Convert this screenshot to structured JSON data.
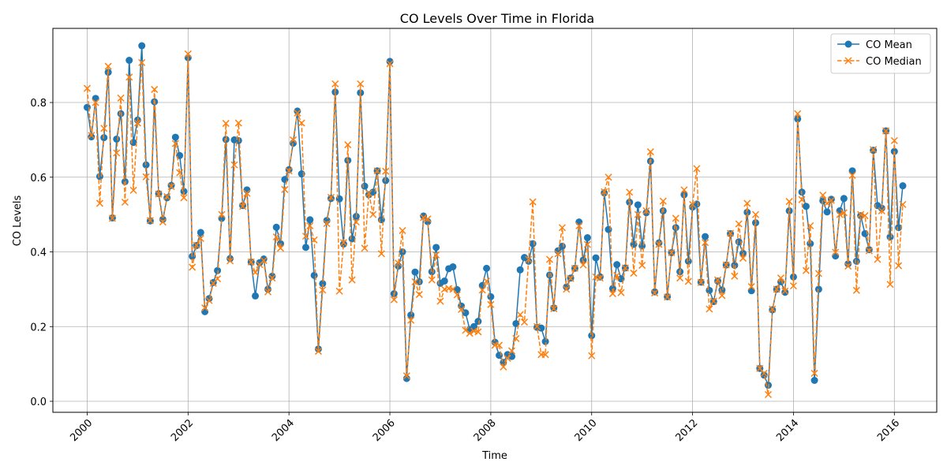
{
  "chart_data": {
    "type": "line",
    "title": "CO Levels Over Time in Florida",
    "xlabel": "Time",
    "ylabel": "CO Levels",
    "xlim": [
      1999.32,
      2016.84
    ],
    "ylim": [
      -0.0295,
      0.9985
    ],
    "x_ticks": [
      2000,
      2002,
      2004,
      2006,
      2008,
      2010,
      2012,
      2014,
      2016
    ],
    "x_tick_labels": [
      "2000",
      "2002",
      "2004",
      "2006",
      "2008",
      "2010",
      "2012",
      "2014",
      "2016"
    ],
    "y_ticks": [
      0.0,
      0.2,
      0.4,
      0.6,
      0.8
    ],
    "y_tick_labels": [
      "0.0",
      "0.2",
      "0.4",
      "0.6",
      "0.8"
    ],
    "grid": true,
    "legend_position": "top-right",
    "series": [
      {
        "name": "CO Mean",
        "color": "#1f77b4",
        "style": "solid",
        "marker": "circle",
        "x": [
          2000.0,
          2000.083,
          2000.167,
          2000.25,
          2000.333,
          2000.417,
          2000.5,
          2000.583,
          2000.667,
          2000.75,
          2000.833,
          2000.917,
          2001.0,
          2001.083,
          2001.167,
          2001.25,
          2001.333,
          2001.417,
          2001.5,
          2001.583,
          2001.667,
          2001.75,
          2001.833,
          2001.917,
          2002.0,
          2002.083,
          2002.167,
          2002.25,
          2002.333,
          2002.417,
          2002.5,
          2002.583,
          2002.667,
          2002.75,
          2002.833,
          2002.917,
          2003.0,
          2003.083,
          2003.167,
          2003.25,
          2003.333,
          2003.417,
          2003.5,
          2003.583,
          2003.667,
          2003.75,
          2003.833,
          2003.917,
          2004.0,
          2004.083,
          2004.167,
          2004.25,
          2004.333,
          2004.417,
          2004.5,
          2004.583,
          2004.667,
          2004.75,
          2004.833,
          2004.917,
          2005.0,
          2005.083,
          2005.167,
          2005.25,
          2005.333,
          2005.417,
          2005.5,
          2005.583,
          2005.667,
          2005.75,
          2005.833,
          2005.917,
          2006.0,
          2006.083,
          2006.167,
          2006.25,
          2006.333,
          2006.417,
          2006.5,
          2006.583,
          2006.667,
          2006.75,
          2006.833,
          2006.917,
          2007.0,
          2007.083,
          2007.167,
          2007.25,
          2007.333,
          2007.417,
          2007.5,
          2007.583,
          2007.667,
          2007.75,
          2007.833,
          2007.917,
          2008.0,
          2008.083,
          2008.167,
          2008.25,
          2008.333,
          2008.417,
          2008.5,
          2008.583,
          2008.667,
          2008.75,
          2008.833,
          2008.917,
          2009.0,
          2009.083,
          2009.167,
          2009.25,
          2009.333,
          2009.417,
          2009.5,
          2009.583,
          2009.667,
          2009.75,
          2009.833,
          2009.917,
          2010.0,
          2010.083,
          2010.167,
          2010.25,
          2010.333,
          2010.417,
          2010.5,
          2010.583,
          2010.667,
          2010.75,
          2010.833,
          2010.917,
          2011.0,
          2011.083,
          2011.167,
          2011.25,
          2011.333,
          2011.417,
          2011.5,
          2011.583,
          2011.667,
          2011.75,
          2011.833,
          2011.917,
          2012.0,
          2012.083,
          2012.167,
          2012.25,
          2012.333,
          2012.417,
          2012.5,
          2012.583,
          2012.667,
          2012.75,
          2012.833,
          2012.917,
          2013.0,
          2013.083,
          2013.167,
          2013.25,
          2013.333,
          2013.417,
          2013.5,
          2013.583,
          2013.667,
          2013.75,
          2013.833,
          2013.917,
          2014.0,
          2014.083,
          2014.167,
          2014.25,
          2014.333,
          2014.417,
          2014.5,
          2014.583,
          2014.667,
          2014.75,
          2014.833,
          2014.917,
          2015.0,
          2015.083,
          2015.167,
          2015.25,
          2015.333,
          2015.417,
          2015.5,
          2015.583,
          2015.667,
          2015.75,
          2015.833,
          2015.917,
          2016.0,
          2016.083,
          2016.167
        ],
        "values": [
          0.787,
          0.708,
          0.811,
          0.602,
          0.706,
          0.881,
          0.491,
          0.702,
          0.77,
          0.588,
          0.913,
          0.693,
          0.753,
          0.952,
          0.633,
          0.483,
          0.802,
          0.556,
          0.487,
          0.545,
          0.578,
          0.707,
          0.658,
          0.562,
          0.92,
          0.388,
          0.417,
          0.452,
          0.24,
          0.275,
          0.318,
          0.35,
          0.49,
          0.701,
          0.382,
          0.7,
          0.698,
          0.524,
          0.566,
          0.373,
          0.282,
          0.371,
          0.381,
          0.3,
          0.335,
          0.466,
          0.422,
          0.594,
          0.62,
          0.691,
          0.777,
          0.609,
          0.412,
          0.486,
          0.337,
          0.14,
          0.315,
          0.484,
          0.543,
          0.828,
          0.542,
          0.421,
          0.645,
          0.435,
          0.495,
          0.826,
          0.576,
          0.553,
          0.56,
          0.617,
          0.486,
          0.591,
          0.91,
          0.288,
          0.362,
          0.4,
          0.061,
          0.231,
          0.346,
          0.32,
          0.496,
          0.481,
          0.347,
          0.412,
          0.316,
          0.322,
          0.355,
          0.36,
          0.299,
          0.255,
          0.237,
          0.192,
          0.2,
          0.214,
          0.31,
          0.356,
          0.28,
          0.158,
          0.123,
          0.104,
          0.125,
          0.12,
          0.208,
          0.352,
          0.385,
          0.375,
          0.422,
          0.198,
          0.196,
          0.16,
          0.338,
          0.25,
          0.403,
          0.415,
          0.306,
          0.33,
          0.356,
          0.48,
          0.378,
          0.438,
          0.176,
          0.384,
          0.333,
          0.558,
          0.46,
          0.302,
          0.366,
          0.328,
          0.357,
          0.533,
          0.42,
          0.526,
          0.416,
          0.505,
          0.643,
          0.293,
          0.424,
          0.51,
          0.28,
          0.398,
          0.465,
          0.347,
          0.553,
          0.375,
          0.52,
          0.528,
          0.319,
          0.441,
          0.297,
          0.267,
          0.322,
          0.298,
          0.365,
          0.449,
          0.364,
          0.427,
          0.396,
          0.506,
          0.296,
          0.478,
          0.088,
          0.07,
          0.043,
          0.245,
          0.3,
          0.32,
          0.292,
          0.51,
          0.333,
          0.756,
          0.56,
          0.522,
          0.422,
          0.056,
          0.3,
          0.537,
          0.507,
          0.541,
          0.389,
          0.51,
          0.543,
          0.368,
          0.617,
          0.375,
          0.497,
          0.449,
          0.406,
          0.672,
          0.524,
          0.517,
          0.724,
          0.44,
          0.669,
          0.465,
          0.577
        ]
      },
      {
        "name": "CO Median",
        "color": "#ff7f0e",
        "style": "dashed",
        "marker": "x",
        "x": [
          2000.0,
          2000.083,
          2000.167,
          2000.25,
          2000.333,
          2000.417,
          2000.5,
          2000.583,
          2000.667,
          2000.75,
          2000.833,
          2000.917,
          2001.0,
          2001.083,
          2001.167,
          2001.25,
          2001.333,
          2001.417,
          2001.5,
          2001.583,
          2001.667,
          2001.75,
          2001.833,
          2001.917,
          2002.0,
          2002.083,
          2002.167,
          2002.25,
          2002.333,
          2002.417,
          2002.5,
          2002.583,
          2002.667,
          2002.75,
          2002.833,
          2002.917,
          2003.0,
          2003.083,
          2003.167,
          2003.25,
          2003.333,
          2003.417,
          2003.5,
          2003.583,
          2003.667,
          2003.75,
          2003.833,
          2003.917,
          2004.0,
          2004.083,
          2004.167,
          2004.25,
          2004.333,
          2004.417,
          2004.5,
          2004.583,
          2004.667,
          2004.75,
          2004.833,
          2004.917,
          2005.0,
          2005.083,
          2005.167,
          2005.25,
          2005.333,
          2005.417,
          2005.5,
          2005.583,
          2005.667,
          2005.75,
          2005.833,
          2005.917,
          2006.0,
          2006.083,
          2006.167,
          2006.25,
          2006.333,
          2006.417,
          2006.5,
          2006.583,
          2006.667,
          2006.75,
          2006.833,
          2006.917,
          2007.0,
          2007.083,
          2007.167,
          2007.25,
          2007.333,
          2007.417,
          2007.5,
          2007.583,
          2007.667,
          2007.75,
          2007.833,
          2007.917,
          2008.0,
          2008.083,
          2008.167,
          2008.25,
          2008.333,
          2008.417,
          2008.5,
          2008.583,
          2008.667,
          2008.75,
          2008.833,
          2008.917,
          2009.0,
          2009.083,
          2009.167,
          2009.25,
          2009.333,
          2009.417,
          2009.5,
          2009.583,
          2009.667,
          2009.75,
          2009.833,
          2009.917,
          2010.0,
          2010.083,
          2010.167,
          2010.25,
          2010.333,
          2010.417,
          2010.5,
          2010.583,
          2010.667,
          2010.75,
          2010.833,
          2010.917,
          2011.0,
          2011.083,
          2011.167,
          2011.25,
          2011.333,
          2011.417,
          2011.5,
          2011.583,
          2011.667,
          2011.75,
          2011.833,
          2011.917,
          2012.0,
          2012.083,
          2012.167,
          2012.25,
          2012.333,
          2012.417,
          2012.5,
          2012.583,
          2012.667,
          2012.75,
          2012.833,
          2012.917,
          2013.0,
          2013.083,
          2013.167,
          2013.25,
          2013.333,
          2013.417,
          2013.5,
          2013.583,
          2013.667,
          2013.75,
          2013.833,
          2013.917,
          2014.0,
          2014.083,
          2014.167,
          2014.25,
          2014.333,
          2014.417,
          2014.5,
          2014.583,
          2014.667,
          2014.75,
          2014.833,
          2014.917,
          2015.0,
          2015.083,
          2015.167,
          2015.25,
          2015.333,
          2015.417,
          2015.5,
          2015.583,
          2015.667,
          2015.75,
          2015.833,
          2015.917,
          2016.0,
          2016.083,
          2016.167
        ],
        "values": [
          0.838,
          0.712,
          0.8,
          0.53,
          0.731,
          0.897,
          0.49,
          0.665,
          0.812,
          0.533,
          0.868,
          0.565,
          0.745,
          0.907,
          0.601,
          0.484,
          0.835,
          0.555,
          0.48,
          0.548,
          0.575,
          0.69,
          0.612,
          0.545,
          0.93,
          0.359,
          0.418,
          0.436,
          0.25,
          0.27,
          0.316,
          0.328,
          0.5,
          0.744,
          0.376,
          0.633,
          0.745,
          0.522,
          0.557,
          0.373,
          0.345,
          0.366,
          0.377,
          0.293,
          0.33,
          0.44,
          0.41,
          0.567,
          0.617,
          0.7,
          0.772,
          0.745,
          0.442,
          0.47,
          0.432,
          0.134,
          0.298,
          0.476,
          0.546,
          0.85,
          0.295,
          0.425,
          0.687,
          0.325,
          0.48,
          0.85,
          0.41,
          0.557,
          0.5,
          0.617,
          0.395,
          0.616,
          0.904,
          0.272,
          0.37,
          0.457,
          0.068,
          0.217,
          0.32,
          0.286,
          0.492,
          0.488,
          0.325,
          0.392,
          0.268,
          0.3,
          0.302,
          0.3,
          0.285,
          0.246,
          0.19,
          0.182,
          0.188,
          0.186,
          0.298,
          0.322,
          0.259,
          0.15,
          0.15,
          0.092,
          0.115,
          0.135,
          0.168,
          0.232,
          0.212,
          0.38,
          0.534,
          0.2,
          0.125,
          0.125,
          0.38,
          0.248,
          0.395,
          0.465,
          0.3,
          0.329,
          0.356,
          0.47,
          0.365,
          0.42,
          0.122,
          0.333,
          0.33,
          0.561,
          0.6,
          0.288,
          0.337,
          0.291,
          0.357,
          0.56,
          0.343,
          0.5,
          0.364,
          0.51,
          0.668,
          0.29,
          0.42,
          0.536,
          0.279,
          0.398,
          0.49,
          0.33,
          0.566,
          0.321,
          0.527,
          0.623,
          0.318,
          0.425,
          0.247,
          0.268,
          0.325,
          0.283,
          0.365,
          0.45,
          0.335,
          0.475,
          0.383,
          0.53,
          0.307,
          0.5,
          0.088,
          0.075,
          0.018,
          0.247,
          0.3,
          0.33,
          0.295,
          0.535,
          0.309,
          0.77,
          0.54,
          0.35,
          0.47,
          0.075,
          0.342,
          0.552,
          0.53,
          0.538,
          0.399,
          0.5,
          0.505,
          0.362,
          0.605,
          0.297,
          0.5,
          0.497,
          0.403,
          0.674,
          0.38,
          0.51,
          0.724,
          0.313,
          0.698,
          0.363,
          0.527
        ]
      }
    ]
  }
}
